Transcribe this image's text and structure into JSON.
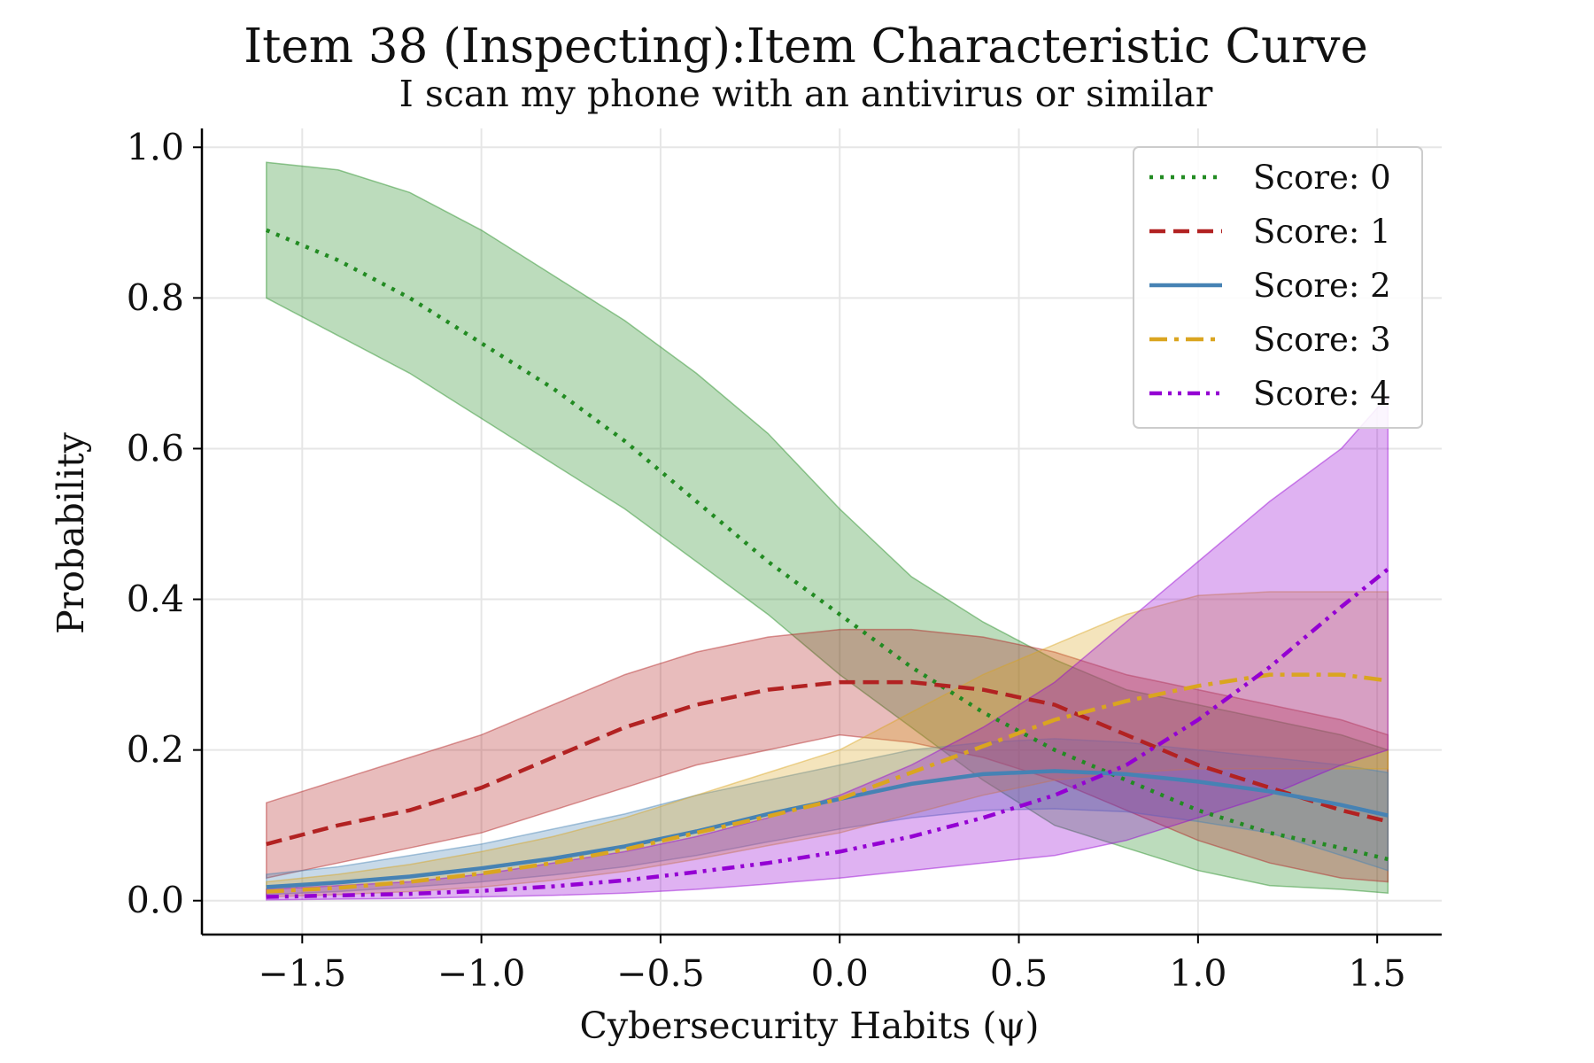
{
  "chart_data": {
    "type": "line",
    "title": "Item 38 (Inspecting):Item Characteristic Curve",
    "subtitle": "I scan my phone with an antivirus or similar",
    "xlabel": "Cybersecurity Habits (ψ)",
    "ylabel": "Probability",
    "xlim": [
      -1.78,
      1.68
    ],
    "ylim": [
      -0.045,
      1.025
    ],
    "xticks": [
      -1.5,
      -1.0,
      -0.5,
      0.0,
      0.5,
      1.0,
      1.5
    ],
    "xtick_labels": [
      "−1.5",
      "−1.0",
      "−0.5",
      "0.0",
      "0.5",
      "1.0",
      "1.5"
    ],
    "yticks": [
      0.0,
      0.2,
      0.4,
      0.6,
      0.8,
      1.0
    ],
    "ytick_labels": [
      "0.0",
      "0.2",
      "0.4",
      "0.6",
      "0.8",
      "1.0"
    ],
    "grid": true,
    "legend_position": "top-right",
    "x": [
      -1.6,
      -1.4,
      -1.2,
      -1.0,
      -0.8,
      -0.6,
      -0.4,
      -0.2,
      0.0,
      0.2,
      0.4,
      0.6,
      0.8,
      1.0,
      1.2,
      1.4,
      1.53
    ],
    "series": [
      {
        "name": "Score: 0",
        "color": "#228b22",
        "dash": "dotted",
        "values": [
          0.89,
          0.85,
          0.8,
          0.74,
          0.68,
          0.61,
          0.53,
          0.45,
          0.38,
          0.31,
          0.25,
          0.2,
          0.16,
          0.12,
          0.09,
          0.07,
          0.055
        ],
        "lower": [
          0.8,
          0.75,
          0.7,
          0.64,
          0.58,
          0.52,
          0.45,
          0.38,
          0.3,
          0.23,
          0.16,
          0.1,
          0.07,
          0.04,
          0.02,
          0.015,
          0.01
        ],
        "upper": [
          0.98,
          0.97,
          0.94,
          0.89,
          0.83,
          0.77,
          0.7,
          0.62,
          0.52,
          0.43,
          0.37,
          0.32,
          0.28,
          0.26,
          0.24,
          0.22,
          0.2
        ]
      },
      {
        "name": "Score: 1",
        "color": "#b22222",
        "dash": "dashed",
        "values": [
          0.075,
          0.1,
          0.12,
          0.15,
          0.19,
          0.23,
          0.26,
          0.28,
          0.29,
          0.29,
          0.28,
          0.26,
          0.22,
          0.18,
          0.15,
          0.12,
          0.105
        ],
        "lower": [
          0.03,
          0.05,
          0.07,
          0.09,
          0.12,
          0.15,
          0.18,
          0.2,
          0.22,
          0.21,
          0.19,
          0.16,
          0.12,
          0.08,
          0.05,
          0.03,
          0.025
        ],
        "upper": [
          0.13,
          0.16,
          0.19,
          0.22,
          0.26,
          0.3,
          0.33,
          0.35,
          0.36,
          0.36,
          0.35,
          0.33,
          0.3,
          0.28,
          0.26,
          0.24,
          0.22
        ]
      },
      {
        "name": "Score: 2",
        "color": "#4682b4",
        "dash": "solid",
        "values": [
          0.018,
          0.024,
          0.032,
          0.043,
          0.056,
          0.072,
          0.092,
          0.115,
          0.135,
          0.155,
          0.168,
          0.172,
          0.168,
          0.158,
          0.145,
          0.127,
          0.113
        ],
        "lower": [
          0.008,
          0.012,
          0.018,
          0.025,
          0.034,
          0.045,
          0.06,
          0.078,
          0.095,
          0.11,
          0.12,
          0.122,
          0.118,
          0.105,
          0.09,
          0.06,
          0.04
        ],
        "upper": [
          0.035,
          0.045,
          0.06,
          0.075,
          0.095,
          0.115,
          0.14,
          0.16,
          0.18,
          0.2,
          0.21,
          0.215,
          0.21,
          0.2,
          0.19,
          0.18,
          0.17
        ]
      },
      {
        "name": "Score: 3",
        "color": "#daa520",
        "dash": "dashdot",
        "values": [
          0.012,
          0.017,
          0.025,
          0.036,
          0.05,
          0.068,
          0.09,
          0.112,
          0.135,
          0.17,
          0.205,
          0.24,
          0.265,
          0.285,
          0.3,
          0.3,
          0.292
        ],
        "lower": [
          0.005,
          0.008,
          0.012,
          0.018,
          0.027,
          0.039,
          0.055,
          0.073,
          0.09,
          0.115,
          0.14,
          0.16,
          0.17,
          0.175,
          0.175,
          0.175,
          0.175
        ],
        "upper": [
          0.025,
          0.035,
          0.048,
          0.065,
          0.085,
          0.11,
          0.14,
          0.17,
          0.2,
          0.25,
          0.3,
          0.34,
          0.38,
          0.405,
          0.41,
          0.41,
          0.41
        ]
      },
      {
        "name": "Score: 4",
        "color": "#9400d3",
        "dash": "dashdotdot",
        "values": [
          0.005,
          0.007,
          0.009,
          0.013,
          0.019,
          0.027,
          0.038,
          0.05,
          0.065,
          0.085,
          0.11,
          0.14,
          0.18,
          0.24,
          0.31,
          0.39,
          0.44
        ],
        "lower": [
          0.001,
          0.002,
          0.003,
          0.005,
          0.007,
          0.01,
          0.015,
          0.022,
          0.03,
          0.04,
          0.05,
          0.06,
          0.08,
          0.11,
          0.14,
          0.18,
          0.2
        ],
        "upper": [
          0.015,
          0.02,
          0.025,
          0.035,
          0.05,
          0.065,
          0.085,
          0.11,
          0.14,
          0.18,
          0.23,
          0.29,
          0.37,
          0.45,
          0.53,
          0.6,
          0.67
        ]
      }
    ]
  }
}
